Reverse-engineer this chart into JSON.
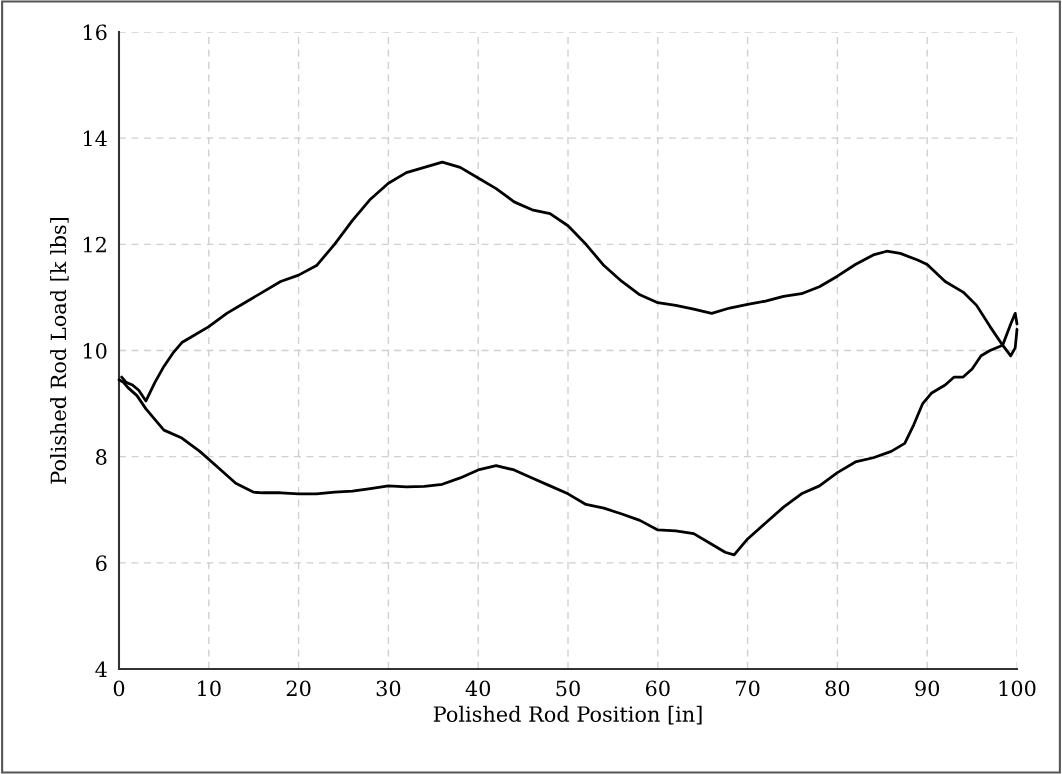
{
  "chart_data": {
    "type": "line",
    "xlabel": "Polished Rod Position [in]",
    "ylabel": "Polished Rod Load [k lbs]",
    "xlim": [
      0,
      100
    ],
    "ylim": [
      4,
      16
    ],
    "xticks": [
      0,
      10,
      20,
      30,
      40,
      50,
      60,
      70,
      80,
      90,
      100
    ],
    "yticks": [
      4,
      6,
      8,
      10,
      12,
      14,
      16
    ],
    "grid": true,
    "legend": false,
    "marker": "none",
    "line_style": "solid",
    "series": [
      {
        "color": "#000000",
        "x": [
          0.3,
          0.8,
          1.5,
          2.2,
          3,
          4,
          5,
          6,
          7,
          8,
          10,
          12,
          14,
          16,
          18,
          20,
          22,
          24,
          26,
          28,
          30,
          32,
          34,
          36,
          38,
          40,
          42,
          44,
          46,
          48,
          50,
          52,
          54,
          56,
          58,
          60,
          62,
          64,
          66,
          68,
          70,
          72,
          74,
          76,
          78,
          80,
          82,
          84,
          85.5,
          87,
          89,
          90,
          92,
          94,
          95.5,
          97,
          98.4,
          99.3,
          99.8,
          100
        ],
        "values": [
          9.5,
          9.4,
          9.35,
          9.25,
          9.05,
          9.4,
          9.7,
          9.95,
          10.15,
          10.25,
          10.45,
          10.7,
          10.9,
          11.1,
          11.3,
          11.42,
          11.6,
          12.0,
          12.45,
          12.85,
          13.15,
          13.35,
          13.45,
          13.55,
          13.45,
          13.25,
          13.05,
          12.8,
          12.65,
          12.58,
          12.35,
          12.0,
          11.6,
          11.3,
          11.05,
          10.9,
          10.85,
          10.78,
          10.7,
          10.8,
          10.87,
          10.93,
          11.02,
          11.07,
          11.2,
          11.4,
          11.62,
          11.8,
          11.87,
          11.83,
          11.7,
          11.62,
          11.3,
          11.1,
          10.85,
          10.45,
          10.1,
          9.9,
          10.05,
          10.4
        ]
      },
      {
        "color": "#000000",
        "x": [
          0,
          0.5,
          1,
          2,
          3,
          5,
          7,
          9,
          11,
          13,
          15,
          16,
          18,
          20,
          22,
          24,
          26,
          28,
          30,
          32,
          34,
          36,
          38,
          40,
          42,
          44,
          46,
          48,
          50,
          52,
          54,
          56,
          58,
          60,
          62,
          64,
          66,
          67.5,
          68.5,
          70,
          72,
          74,
          76,
          78,
          80,
          82,
          84,
          86,
          87.5,
          88.5,
          89.5,
          90.5,
          92,
          93,
          94,
          95,
          96,
          97,
          98.4,
          99.3,
          99.8,
          100
        ],
        "values": [
          9.45,
          9.4,
          9.3,
          9.15,
          8.9,
          8.5,
          8.35,
          8.1,
          7.8,
          7.5,
          7.33,
          7.32,
          7.32,
          7.3,
          7.3,
          7.33,
          7.35,
          7.4,
          7.45,
          7.43,
          7.44,
          7.48,
          7.6,
          7.75,
          7.83,
          7.75,
          7.6,
          7.45,
          7.3,
          7.1,
          7.03,
          6.92,
          6.8,
          6.62,
          6.6,
          6.55,
          6.35,
          6.2,
          6.15,
          6.45,
          6.75,
          7.05,
          7.3,
          7.45,
          7.7,
          7.9,
          7.98,
          8.1,
          8.25,
          8.6,
          9.0,
          9.2,
          9.35,
          9.5,
          9.5,
          9.65,
          9.9,
          10.0,
          10.1,
          10.5,
          10.7,
          10.5
        ]
      }
    ]
  }
}
